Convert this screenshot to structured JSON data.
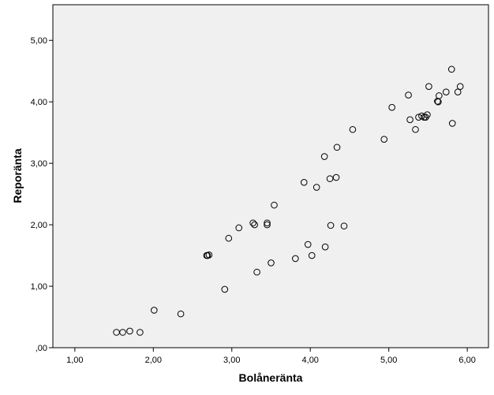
{
  "chart_data": {
    "type": "scatter",
    "xlabel": "Bolåneränta",
    "ylabel": "Reporänta",
    "xlim": [
      0.72,
      6.27
    ],
    "ylim": [
      0.0,
      5.58
    ],
    "x_ticks": [
      "1,00",
      "2,00",
      "3,00",
      "4,00",
      "5,00",
      "6,00"
    ],
    "y_ticks": [
      ",00",
      "1,00",
      "2,00",
      "3,00",
      "4,00",
      "5,00"
    ],
    "grid": false,
    "marker": "open-circle",
    "colors": {
      "plot_background": "#f0f0f0",
      "marker_edge": "#000000"
    },
    "points": [
      {
        "x": 1.53,
        "y": 0.25
      },
      {
        "x": 1.61,
        "y": 0.25
      },
      {
        "x": 1.7,
        "y": 0.27
      },
      {
        "x": 1.83,
        "y": 0.25
      },
      {
        "x": 2.01,
        "y": 0.61
      },
      {
        "x": 2.35,
        "y": 0.55
      },
      {
        "x": 2.68,
        "y": 1.5
      },
      {
        "x": 2.69,
        "y": 1.5
      },
      {
        "x": 2.71,
        "y": 1.51
      },
      {
        "x": 2.91,
        "y": 0.95
      },
      {
        "x": 2.96,
        "y": 1.78
      },
      {
        "x": 3.09,
        "y": 1.95
      },
      {
        "x": 3.27,
        "y": 2.03
      },
      {
        "x": 3.29,
        "y": 2.0
      },
      {
        "x": 3.32,
        "y": 1.23
      },
      {
        "x": 3.45,
        "y": 2.0
      },
      {
        "x": 3.45,
        "y": 2.03
      },
      {
        "x": 3.5,
        "y": 1.38
      },
      {
        "x": 3.54,
        "y": 2.32
      },
      {
        "x": 3.81,
        "y": 1.45
      },
      {
        "x": 3.92,
        "y": 2.69
      },
      {
        "x": 3.97,
        "y": 1.68
      },
      {
        "x": 4.02,
        "y": 1.5
      },
      {
        "x": 4.08,
        "y": 2.61
      },
      {
        "x": 4.18,
        "y": 3.11
      },
      {
        "x": 4.19,
        "y": 1.64
      },
      {
        "x": 4.25,
        "y": 2.75
      },
      {
        "x": 4.26,
        "y": 1.99
      },
      {
        "x": 4.33,
        "y": 2.77
      },
      {
        "x": 4.34,
        "y": 3.26
      },
      {
        "x": 4.43,
        "y": 1.98
      },
      {
        "x": 4.54,
        "y": 3.55
      },
      {
        "x": 4.94,
        "y": 3.39
      },
      {
        "x": 5.04,
        "y": 3.91
      },
      {
        "x": 5.25,
        "y": 4.11
      },
      {
        "x": 5.27,
        "y": 3.71
      },
      {
        "x": 5.34,
        "y": 3.55
      },
      {
        "x": 5.38,
        "y": 3.75
      },
      {
        "x": 5.42,
        "y": 3.77
      },
      {
        "x": 5.45,
        "y": 3.75
      },
      {
        "x": 5.47,
        "y": 3.75
      },
      {
        "x": 5.49,
        "y": 3.79
      },
      {
        "x": 5.51,
        "y": 4.25
      },
      {
        "x": 5.62,
        "y": 4.01
      },
      {
        "x": 5.63,
        "y": 4.0
      },
      {
        "x": 5.64,
        "y": 4.1
      },
      {
        "x": 5.73,
        "y": 4.16
      },
      {
        "x": 5.8,
        "y": 4.53
      },
      {
        "x": 5.81,
        "y": 3.65
      },
      {
        "x": 5.88,
        "y": 4.16
      },
      {
        "x": 5.91,
        "y": 4.25
      }
    ]
  }
}
